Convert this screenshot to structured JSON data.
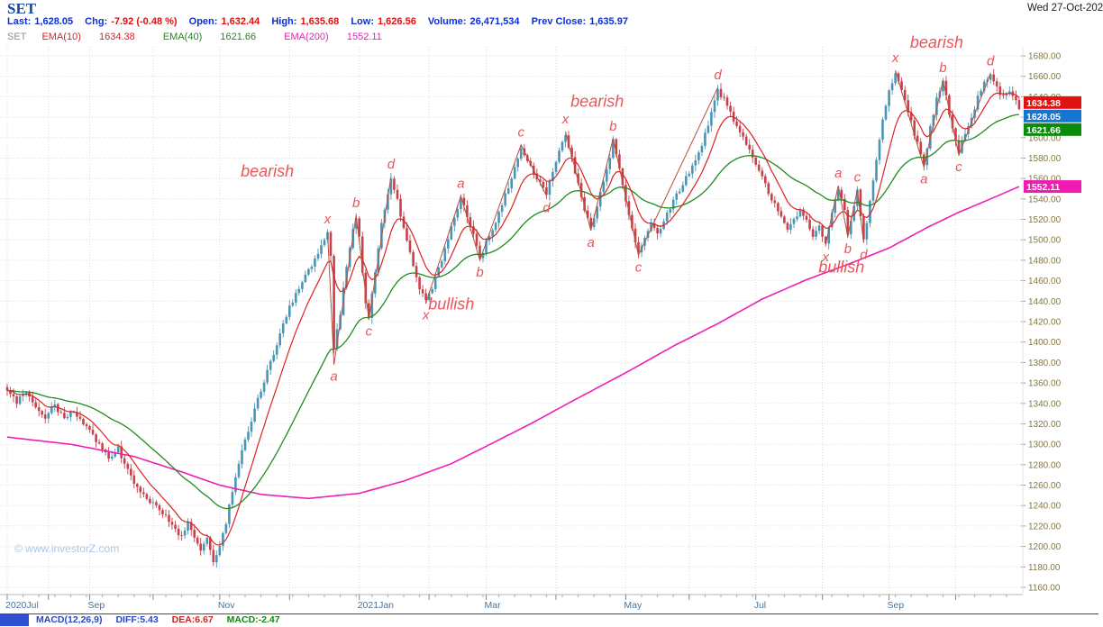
{
  "window": {
    "date_label": "Wed 27-Oct-202"
  },
  "header": {
    "symbol": "SET",
    "fields": [
      {
        "label": "Last:",
        "value": "1,628.05",
        "color": "blue"
      },
      {
        "label": "Chg:",
        "value": "-7.92 (-0.48 %)",
        "color": "red"
      },
      {
        "label": "Open:",
        "value": "1,632.44",
        "color": "red"
      },
      {
        "label": "High:",
        "value": "1,635.68",
        "color": "red"
      },
      {
        "label": "Low:",
        "value": "1,626.56",
        "color": "red"
      },
      {
        "label": "Volume:",
        "value": "26,471,534",
        "color": "blue"
      },
      {
        "label": "Prev Close:",
        "value": "1,635.97",
        "color": "blue"
      }
    ]
  },
  "legend": {
    "symbol": "SET",
    "emas": [
      {
        "label": "EMA(10)",
        "value": "1634.38",
        "color": "#dc2222"
      },
      {
        "label": "EMA(40)",
        "value": "1621.66",
        "color": "#1f8b1f"
      },
      {
        "label": "EMA(200)",
        "value": "1552.11",
        "color": "#ee1fb4"
      }
    ]
  },
  "watermark": "© www.investorZ.com",
  "footer": {
    "items": [
      {
        "label": "MACD(12,26,9)",
        "color": "#2a46c8"
      },
      {
        "label": "DIFF:5.43",
        "color": "#2a46c8"
      },
      {
        "label": "DEA:6.67",
        "color": "#cc2222"
      },
      {
        "label": "MACD:-2.47",
        "color": "#0f8a0f"
      }
    ]
  },
  "chart_data": {
    "type": "candlestick",
    "title": "SET daily candlesticks with EMA(10), EMA(40), EMA(200)",
    "last_price": 1628.05,
    "n_days": 320,
    "y_axis": {
      "min": 1160,
      "max": 1680,
      "step": 20
    },
    "x_axis": {
      "unit": "trading-day index, day 0 = late Jul 2020, last day = 27 Oct 2021",
      "months": [
        {
          "day": 0,
          "label": "2020Jul"
        },
        {
          "day": 13,
          "label": ""
        },
        {
          "day": 26,
          "label": "Sep"
        },
        {
          "day": 46,
          "label": ""
        },
        {
          "day": 67,
          "label": "Nov"
        },
        {
          "day": 89,
          "label": ""
        },
        {
          "day": 111,
          "label": "2021Jan"
        },
        {
          "day": 133,
          "label": ""
        },
        {
          "day": 151,
          "label": "Mar"
        },
        {
          "day": 173,
          "label": ""
        },
        {
          "day": 195,
          "label": "May"
        },
        {
          "day": 215,
          "label": ""
        },
        {
          "day": 236,
          "label": "Jul"
        },
        {
          "day": 257,
          "label": ""
        },
        {
          "day": 278,
          "label": "Sep"
        },
        {
          "day": 299,
          "label": ""
        }
      ]
    },
    "close_keypoints": [
      [
        0,
        1352
      ],
      [
        3,
        1342
      ],
      [
        6,
        1350
      ],
      [
        9,
        1337
      ],
      [
        12,
        1327
      ],
      [
        15,
        1338
      ],
      [
        18,
        1325
      ],
      [
        21,
        1333
      ],
      [
        24,
        1320
      ],
      [
        26,
        1312
      ],
      [
        29,
        1299
      ],
      [
        32,
        1287
      ],
      [
        35,
        1296
      ],
      [
        38,
        1274
      ],
      [
        41,
        1257
      ],
      [
        44,
        1247
      ],
      [
        46,
        1242
      ],
      [
        49,
        1233
      ],
      [
        52,
        1220
      ],
      [
        55,
        1209
      ],
      [
        57,
        1224
      ],
      [
        59,
        1209
      ],
      [
        61,
        1196
      ],
      [
        63,
        1207
      ],
      [
        65,
        1187
      ],
      [
        67,
        1199
      ],
      [
        69,
        1224
      ],
      [
        71,
        1254
      ],
      [
        73,
        1281
      ],
      [
        75,
        1304
      ],
      [
        77,
        1324
      ],
      [
        79,
        1344
      ],
      [
        81,
        1361
      ],
      [
        83,
        1381
      ],
      [
        85,
        1399
      ],
      [
        87,
        1417
      ],
      [
        89,
        1434
      ],
      [
        91,
        1447
      ],
      [
        93,
        1459
      ],
      [
        95,
        1469
      ],
      [
        97,
        1481
      ],
      [
        99,
        1493
      ],
      [
        101,
        1508
      ],
      [
        102,
        1484
      ],
      [
        103,
        1394
      ],
      [
        104,
        1411
      ],
      [
        105,
        1429
      ],
      [
        106,
        1451
      ],
      [
        107,
        1471
      ],
      [
        108,
        1491
      ],
      [
        109,
        1509
      ],
      [
        110,
        1522
      ],
      [
        111,
        1501
      ],
      [
        112,
        1467
      ],
      [
        113,
        1439
      ],
      [
        114,
        1424
      ],
      [
        115,
        1447
      ],
      [
        116,
        1469
      ],
      [
        117,
        1491
      ],
      [
        118,
        1514
      ],
      [
        119,
        1531
      ],
      [
        120,
        1547
      ],
      [
        121,
        1560
      ],
      [
        122,
        1551
      ],
      [
        123,
        1538
      ],
      [
        124,
        1524
      ],
      [
        125,
        1512
      ],
      [
        126,
        1498
      ],
      [
        127,
        1486
      ],
      [
        128,
        1475
      ],
      [
        129,
        1463
      ],
      [
        130,
        1454
      ],
      [
        131,
        1447
      ],
      [
        132,
        1440
      ],
      [
        134,
        1454
      ],
      [
        136,
        1471
      ],
      [
        138,
        1491
      ],
      [
        140,
        1514
      ],
      [
        142,
        1531
      ],
      [
        143,
        1541
      ],
      [
        145,
        1524
      ],
      [
        147,
        1504
      ],
      [
        149,
        1482
      ],
      [
        151,
        1497
      ],
      [
        153,
        1511
      ],
      [
        155,
        1527
      ],
      [
        157,
        1544
      ],
      [
        159,
        1561
      ],
      [
        161,
        1579
      ],
      [
        162,
        1591
      ],
      [
        164,
        1577
      ],
      [
        166,
        1565
      ],
      [
        168,
        1555
      ],
      [
        170,
        1545
      ],
      [
        172,
        1567
      ],
      [
        174,
        1587
      ],
      [
        176,
        1604
      ],
      [
        178,
        1579
      ],
      [
        180,
        1554
      ],
      [
        182,
        1529
      ],
      [
        184,
        1511
      ],
      [
        186,
        1534
      ],
      [
        188,
        1557
      ],
      [
        190,
        1579
      ],
      [
        191,
        1597
      ],
      [
        193,
        1569
      ],
      [
        195,
        1539
      ],
      [
        197,
        1511
      ],
      [
        199,
        1487
      ],
      [
        201,
        1504
      ],
      [
        203,
        1517
      ],
      [
        205,
        1507
      ],
      [
        207,
        1519
      ],
      [
        209,
        1531
      ],
      [
        211,
        1544
      ],
      [
        213,
        1555
      ],
      [
        215,
        1565
      ],
      [
        217,
        1577
      ],
      [
        219,
        1594
      ],
      [
        221,
        1614
      ],
      [
        223,
        1634
      ],
      [
        224,
        1647
      ],
      [
        226,
        1637
      ],
      [
        228,
        1624
      ],
      [
        230,
        1611
      ],
      [
        232,
        1599
      ],
      [
        234,
        1587
      ],
      [
        236,
        1574
      ],
      [
        238,
        1561
      ],
      [
        240,
        1547
      ],
      [
        242,
        1535
      ],
      [
        244,
        1521
      ],
      [
        246,
        1509
      ],
      [
        248,
        1520
      ],
      [
        250,
        1530
      ],
      [
        252,
        1518
      ],
      [
        254,
        1505
      ],
      [
        256,
        1513
      ],
      [
        258,
        1497
      ],
      [
        260,
        1524
      ],
      [
        262,
        1551
      ],
      [
        264,
        1527
      ],
      [
        265,
        1505
      ],
      [
        266,
        1519
      ],
      [
        268,
        1547
      ],
      [
        269,
        1521
      ],
      [
        270,
        1499
      ],
      [
        272,
        1538
      ],
      [
        274,
        1578
      ],
      [
        276,
        1618
      ],
      [
        278,
        1646
      ],
      [
        280,
        1664
      ],
      [
        282,
        1649
      ],
      [
        284,
        1627
      ],
      [
        286,
        1604
      ],
      [
        288,
        1585
      ],
      [
        289,
        1573
      ],
      [
        291,
        1609
      ],
      [
        293,
        1639
      ],
      [
        295,
        1654
      ],
      [
        297,
        1624
      ],
      [
        299,
        1599
      ],
      [
        300,
        1585
      ],
      [
        302,
        1604
      ],
      [
        304,
        1621
      ],
      [
        306,
        1639
      ],
      [
        308,
        1653
      ],
      [
        310,
        1661
      ],
      [
        312,
        1649
      ],
      [
        314,
        1639
      ],
      [
        316,
        1647
      ],
      [
        318,
        1635
      ],
      [
        319,
        1628.05
      ]
    ],
    "ema": [
      {
        "period": 10,
        "last": 1634.38,
        "color": "#dc2222"
      },
      {
        "period": 40,
        "last": 1621.66,
        "color": "#1f8b1f"
      },
      {
        "period": 200,
        "last": 1552.11,
        "color": "#ee1fb4"
      }
    ],
    "ema200_keypoints": [
      [
        0,
        1307
      ],
      [
        20,
        1300
      ],
      [
        40,
        1288
      ],
      [
        55,
        1273
      ],
      [
        67,
        1260
      ],
      [
        80,
        1251
      ],
      [
        95,
        1247
      ],
      [
        111,
        1252
      ],
      [
        125,
        1264
      ],
      [
        140,
        1281
      ],
      [
        151,
        1298
      ],
      [
        165,
        1320
      ],
      [
        178,
        1342
      ],
      [
        195,
        1370
      ],
      [
        210,
        1396
      ],
      [
        224,
        1418
      ],
      [
        238,
        1442
      ],
      [
        252,
        1461
      ],
      [
        265,
        1476
      ],
      [
        278,
        1492
      ],
      [
        290,
        1512
      ],
      [
        300,
        1527
      ],
      [
        310,
        1540
      ],
      [
        319,
        1552.11
      ]
    ],
    "price_badges": [
      {
        "text": "1634.38",
        "value": 1634.38,
        "color": "#e11212"
      },
      {
        "text": "1628.05",
        "value": 1628.05,
        "color": "#1576d2"
      },
      {
        "text": "1621.66",
        "value": 1621.66,
        "color": "#0b8a0b"
      },
      {
        "text": "1552.11",
        "value": 1552.11,
        "color": "#f01bb0"
      }
    ],
    "patterns": [
      {
        "bias": "bearish",
        "label_at": [
          82,
          1562
        ],
        "points": [
          {
            "letter": "x",
            "day": 101,
            "price": 1508,
            "side": "above"
          },
          {
            "letter": "a",
            "day": 103,
            "price": 1378,
            "side": "below"
          },
          {
            "letter": "b",
            "day": 110,
            "price": 1524,
            "side": "above"
          },
          {
            "letter": "c",
            "day": 114,
            "price": 1422,
            "side": "below"
          },
          {
            "letter": "d",
            "day": 121,
            "price": 1562,
            "side": "above"
          }
        ]
      },
      {
        "bias": "bullish",
        "label_at": [
          140,
          1432
        ],
        "points": [
          {
            "letter": "x",
            "day": 132,
            "price": 1438,
            "side": "below"
          },
          {
            "letter": "a",
            "day": 143,
            "price": 1543,
            "side": "above"
          },
          {
            "letter": "b",
            "day": 149,
            "price": 1480,
            "side": "below"
          },
          {
            "letter": "c",
            "day": 162,
            "price": 1593,
            "side": "above"
          },
          {
            "letter": "d",
            "day": 170,
            "price": 1543,
            "side": "below"
          }
        ]
      },
      {
        "bias": "bearish",
        "label_at": [
          186,
          1630
        ],
        "points": [
          {
            "letter": "x",
            "day": 176,
            "price": 1606,
            "side": "above"
          },
          {
            "letter": "a",
            "day": 184,
            "price": 1509,
            "side": "below"
          },
          {
            "letter": "b",
            "day": 191,
            "price": 1599,
            "side": "above"
          },
          {
            "letter": "c",
            "day": 199,
            "price": 1485,
            "side": "below"
          },
          {
            "letter": "d",
            "day": 224,
            "price": 1649,
            "side": "above"
          }
        ]
      },
      {
        "bias": "bullish",
        "label_at": [
          263,
          1468
        ],
        "points": [
          {
            "letter": "x",
            "day": 258,
            "price": 1495,
            "side": "below"
          },
          {
            "letter": "a",
            "day": 262,
            "price": 1553,
            "side": "above"
          },
          {
            "letter": "b",
            "day": 265,
            "price": 1503,
            "side": "below"
          },
          {
            "letter": "c",
            "day": 268,
            "price": 1549,
            "side": "above"
          },
          {
            "letter": "d",
            "day": 270,
            "price": 1497,
            "side": "below"
          }
        ]
      },
      {
        "bias": "bearish",
        "label_at": [
          293,
          1688
        ],
        "points": [
          {
            "letter": "x",
            "day": 280,
            "price": 1666,
            "side": "above"
          },
          {
            "letter": "a",
            "day": 289,
            "price": 1571,
            "side": "below"
          },
          {
            "letter": "b",
            "day": 295,
            "price": 1656,
            "side": "above"
          },
          {
            "letter": "c",
            "day": 300,
            "price": 1583,
            "side": "below"
          },
          {
            "letter": "d",
            "day": 310,
            "price": 1663,
            "side": "above"
          }
        ]
      }
    ],
    "candle_up_color": "#4a95b5",
    "candle_down_color": "#c9404a",
    "annotation_color": "#e8565a",
    "pattern_line_color": "#b4523e",
    "grid_color": "#dcdcdc"
  }
}
